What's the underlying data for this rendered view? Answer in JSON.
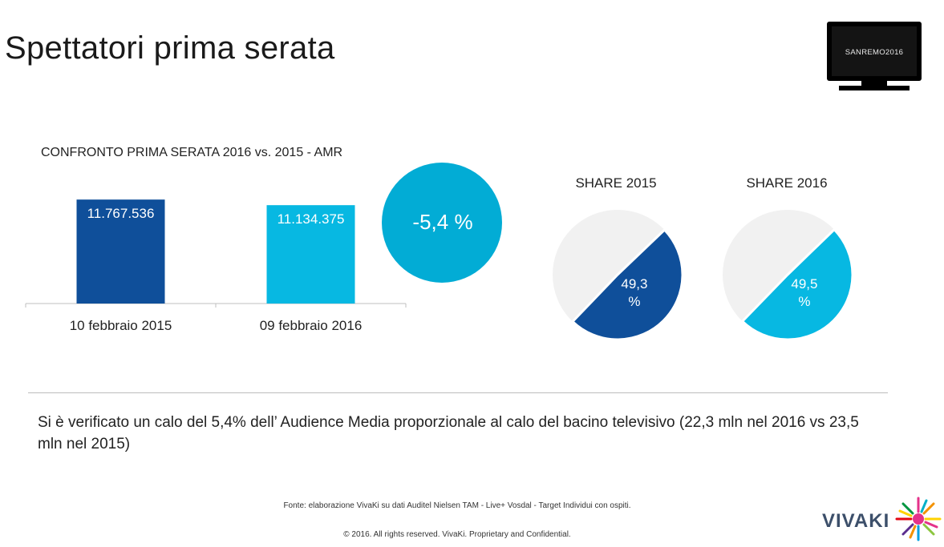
{
  "page": {
    "title": "Spettatori prima serata",
    "note": "Si è verificato un calo del 5,4% dell’ Audience Media proporzionale al calo del bacino televisivo (22,3 mln nel 2016 vs 23,5 mln nel 2015)",
    "source": "Fonte: elaborazione VivaKi su dati Auditel Nielsen TAM - Live+ Vosdal  -  Target Individui con ospiti.",
    "copyright": "© 2016.  All rights reserved. VivaKi. Proprietary and Confidential.",
    "tv_logo_text": "SANREMO2016",
    "brand": "VIVAKI"
  },
  "colors": {
    "dark_blue": "#0f4f9a",
    "light_blue": "#07b8e2",
    "circle_blue": "#02acd5",
    "pie_background": "#f1f1f1"
  },
  "chart_data": [
    {
      "type": "bar",
      "title": "CONFRONTO PRIMA SERATA 2016 vs. 2015 - AMR",
      "categories": [
        "10 febbraio 2015",
        "09 febbraio 2016"
      ],
      "values": [
        11767536,
        11134375
      ],
      "value_labels": [
        "11.767.536",
        "11.134.375"
      ],
      "colors": [
        "#0f4f9a",
        "#07b8e2"
      ],
      "ylim": [
        0,
        12600000
      ],
      "grid": false,
      "annotation": "-5,4 %"
    },
    {
      "type": "pie",
      "title": "SHARE 2015",
      "values": [
        49.3,
        50.7
      ],
      "label": "49,3 %",
      "colors": [
        "#0f4f9a",
        "#f1f1f1"
      ]
    },
    {
      "type": "pie",
      "title": "SHARE 2016",
      "values": [
        49.5,
        50.5
      ],
      "label": "49,5 %",
      "colors": [
        "#07b8e2",
        "#f1f1f1"
      ]
    }
  ]
}
